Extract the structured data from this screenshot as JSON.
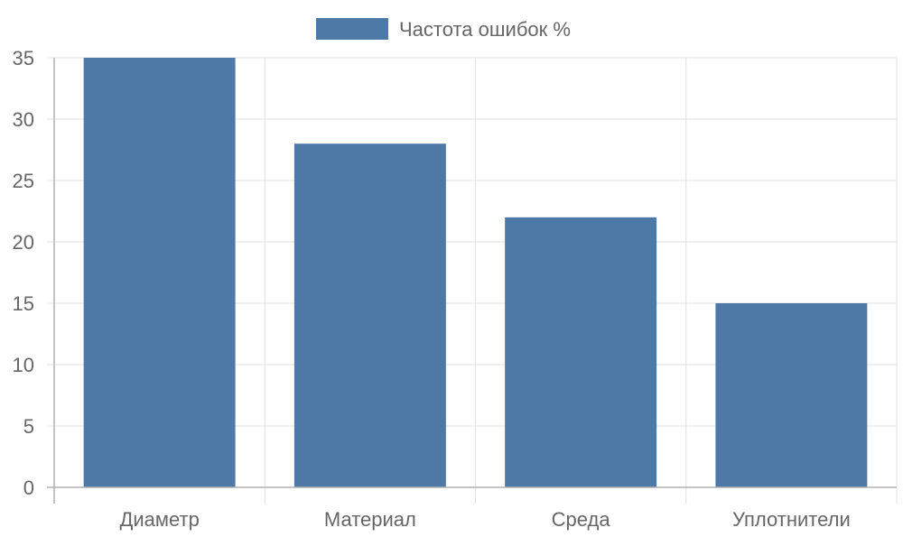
{
  "chart_data": {
    "type": "bar",
    "categories": [
      "Диаметр",
      "Материал",
      "Среда",
      "Уплотнители"
    ],
    "series": [
      {
        "name": "Частота ошибок %",
        "values": [
          35,
          28,
          22,
          15
        ],
        "color": "#4e79a7"
      }
    ],
    "ylim": [
      0,
      35
    ],
    "yticks": [
      0,
      5,
      10,
      15,
      20,
      25,
      30,
      35
    ],
    "grid": true,
    "legend_position": "top-center"
  },
  "colors": {
    "bar": "#4e79a7",
    "grid": "#e0e0e0",
    "axis": "#b0b0b0",
    "text": "#666666"
  }
}
